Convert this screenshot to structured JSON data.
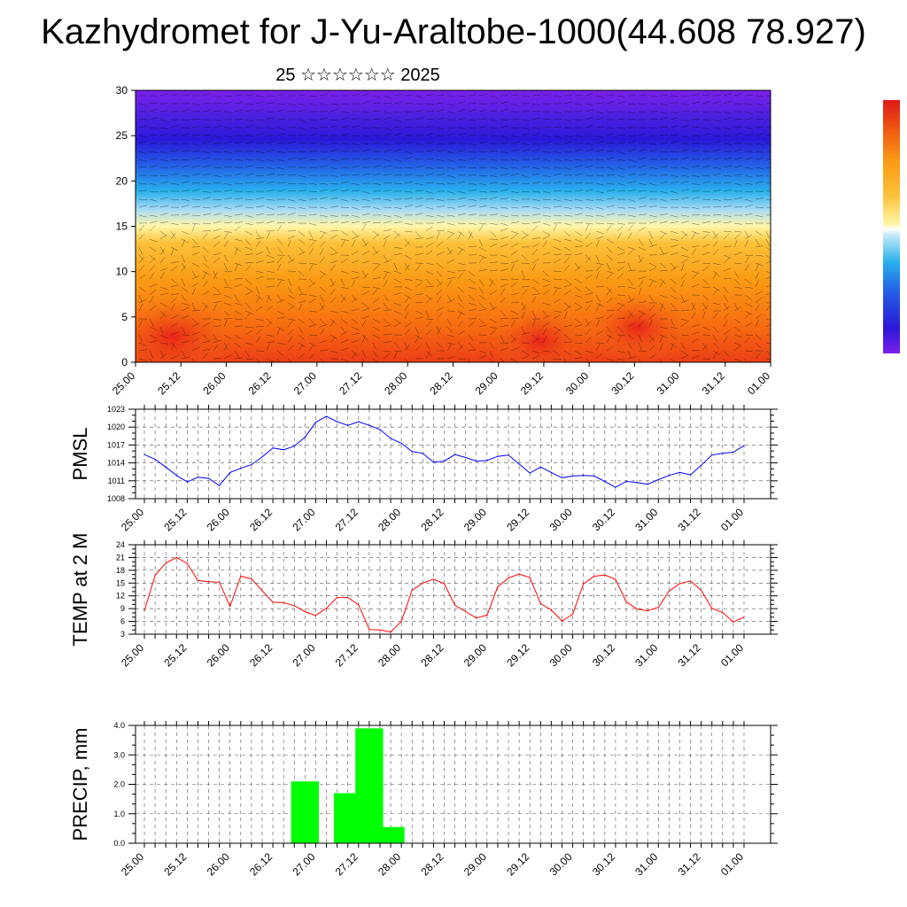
{
  "header": {
    "title": "Kazhydromet for J-Yu-Araltobe-1000(44.608 78.927)",
    "subtitle": "25 ☆☆☆☆☆☆ 2025"
  },
  "chart_data": [
    {
      "type": "heatmap",
      "ylim": [
        0,
        30
      ],
      "yticks": [
        "0",
        "5",
        "10",
        "15",
        "20",
        "25",
        "30"
      ],
      "x_tick_labels": [
        "25.00",
        "25.12",
        "26.00",
        "26.12",
        "27.00",
        "27.12",
        "28.00",
        "28.12",
        "29.00",
        "29.12",
        "30.00",
        "30.12",
        "31.00",
        "31.12",
        "01.00"
      ],
      "colors": {
        "warm": "#e8261a",
        "mid": "#fba313",
        "pale": "#fff6a8",
        "cool": "#28b0ec",
        "cold": "#2a18d8",
        "top": "#7b20ea"
      },
      "note_overlay": "wind barbs"
    },
    {
      "type": "line",
      "ylabel": "PMSL",
      "yticks": [
        "1008",
        "1011",
        "1014",
        "1017",
        "1020",
        "1023"
      ],
      "ylim": [
        1008,
        1023
      ],
      "line_color": "#0000ff",
      "x_tick_labels": [
        "25.00",
        "25.12",
        "26.00",
        "26.12",
        "27.00",
        "27.12",
        "28.00",
        "28.12",
        "29.00",
        "29.12",
        "30.00",
        "30.12",
        "31.00",
        "31.12",
        "01.00"
      ],
      "values": [
        1015.4,
        1014.6,
        1013.3,
        1011.9,
        1010.8,
        1011.6,
        1011.4,
        1010.2,
        1012.4,
        1013.1,
        1013.7,
        1015.0,
        1016.5,
        1016.2,
        1016.8,
        1018.3,
        1020.8,
        1021.8,
        1020.9,
        1020.3,
        1020.9,
        1020.3,
        1019.6,
        1018.1,
        1017.3,
        1015.9,
        1015.6,
        1014.1,
        1014.3,
        1015.4,
        1014.9,
        1014.3,
        1014.4,
        1015.1,
        1015.3,
        1013.8,
        1012.3,
        1013.3,
        1012.4,
        1011.5,
        1011.8,
        1011.9,
        1011.8,
        1010.9,
        1009.9,
        1010.9,
        1010.7,
        1010.4,
        1011.2,
        1011.9,
        1012.4,
        1012.0,
        1013.6,
        1015.3,
        1015.6,
        1015.8,
        1016.9
      ]
    },
    {
      "type": "line",
      "ylabel": "TEMP at 2 M",
      "yticks": [
        "3",
        "6",
        "9",
        "12",
        "15",
        "18",
        "21",
        "24"
      ],
      "ylim": [
        3,
        24
      ],
      "line_color": "#ff0000",
      "x_tick_labels": [
        "25.00",
        "25.12",
        "26.00",
        "26.12",
        "27.00",
        "27.12",
        "28.00",
        "28.12",
        "29.00",
        "29.12",
        "30.00",
        "30.12",
        "31.00",
        "31.12",
        "01.00"
      ],
      "values": [
        8.5,
        16.8,
        19.7,
        21.0,
        19.6,
        15.6,
        15.3,
        15.2,
        9.5,
        16.6,
        16.0,
        13.2,
        10.5,
        10.4,
        9.7,
        8.3,
        7.4,
        9.1,
        11.6,
        11.6,
        9.9,
        4.1,
        4.0,
        3.5,
        6.0,
        13.3,
        15.0,
        15.9,
        14.9,
        9.8,
        8.3,
        6.8,
        7.5,
        14.1,
        16.2,
        17.1,
        16.3,
        10.2,
        8.7,
        6.1,
        7.7,
        14.8,
        16.6,
        16.9,
        15.9,
        10.6,
        8.9,
        8.5,
        9.3,
        13.1,
        14.9,
        15.5,
        13.3,
        9.1,
        8.1,
        5.9,
        7.0
      ]
    },
    {
      "type": "bar",
      "ylabel": "PRECIP, mm",
      "yticks": [
        "0.0",
        "1.0",
        "2.0",
        "3.0",
        "4.0"
      ],
      "ylim": [
        0,
        4
      ],
      "bar_color": "#00ff00",
      "x_tick_labels": [
        "25.00",
        "25.12",
        "26.00",
        "26.12",
        "27.00",
        "27.12",
        "28.00",
        "28.12",
        "29.00",
        "29.12",
        "30.00",
        "30.12",
        "31.00",
        "31.12",
        "01.00"
      ],
      "bars": [
        {
          "t": 22.5,
          "value": 2.1
        },
        {
          "t": 28.5,
          "value": 1.7
        },
        {
          "t": 31.5,
          "value": 3.9
        },
        {
          "t": 34.5,
          "value": 0.55
        }
      ]
    }
  ]
}
